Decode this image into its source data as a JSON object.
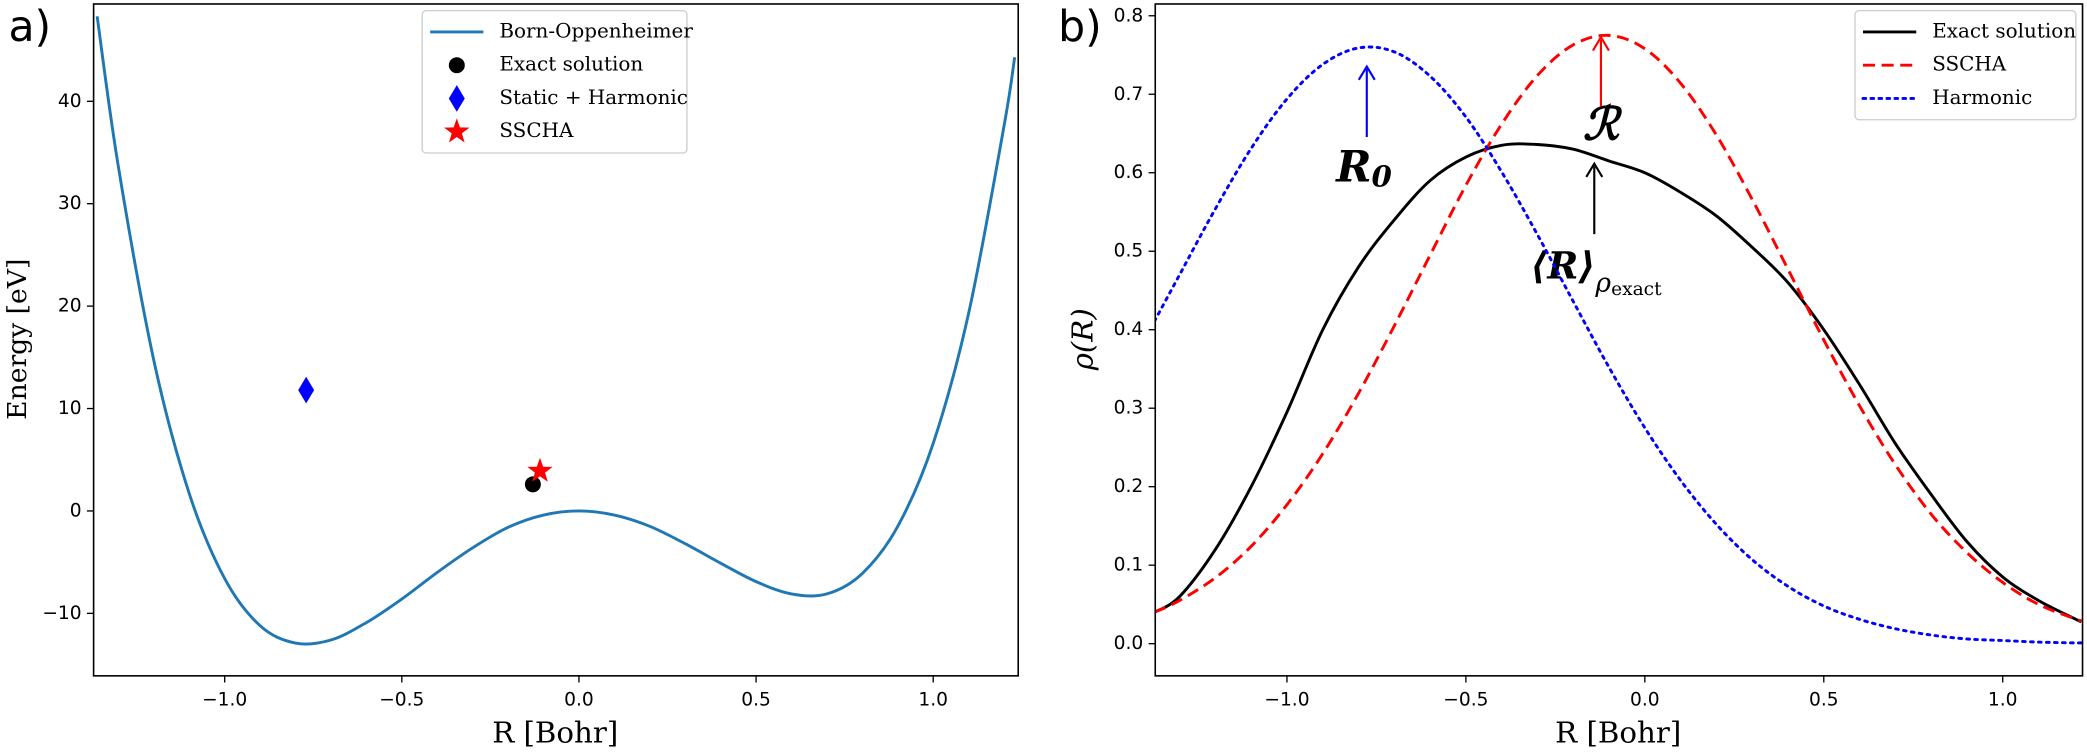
{
  "chart_data": [
    {
      "type": "line",
      "panel_label": "a)",
      "xlabel": "R [Bohr]",
      "ylabel": "Energy [eV]",
      "xlim": [
        -1.37,
        1.24
      ],
      "ylim": [
        -16.1,
        49.5
      ],
      "xticks": [
        {
          "value": -1.0,
          "label": "−1.0"
        },
        {
          "value": -0.5,
          "label": "−0.5"
        },
        {
          "value": 0,
          "label": "0.0"
        },
        0.5,
        {
          "value": 1.0,
          "label": "1.0"
        }
      ],
      "yticks": [
        {
          "value": -10,
          "label": "−10"
        },
        0,
        10,
        20,
        30,
        40
      ],
      "legend": "upper center",
      "series": [
        {
          "name": "Born-Oppenheimer",
          "color": "#1f77b4",
          "style": "solid",
          "x": [
            -1.36,
            -1.3,
            -1.2,
            -1.1,
            -1.0,
            -0.9,
            -0.8,
            -0.7,
            -0.6,
            -0.5,
            -0.4,
            -0.3,
            -0.2,
            -0.1,
            0,
            0.1,
            0.2,
            0.3,
            0.4,
            0.5,
            0.6,
            0.7,
            0.8,
            0.9,
            1.0,
            1.1,
            1.2,
            1.23
          ],
          "values": [
            48.3,
            33.6,
            14.7,
            1.7,
            -6.6,
            -11.2,
            -12.9,
            -12.6,
            -10.9,
            -8.6,
            -6.0,
            -3.6,
            -1.6,
            -0.4,
            0,
            -0.4,
            -1.5,
            -3.2,
            -5.1,
            -6.9,
            -8.1,
            -8.1,
            -6.1,
            -1.5,
            6.6,
            19.3,
            37.6,
            44.3
          ]
        },
        {
          "name": "Exact solution",
          "color": "#000000",
          "marker": "circle",
          "x": [
            -0.13
          ],
          "values": [
            2.6
          ]
        },
        {
          "name": "Static + Harmonic",
          "color": "#0000ff",
          "marker": "diamond",
          "x": [
            -0.77
          ],
          "values": [
            11.8
          ]
        },
        {
          "name": "SSCHA",
          "color": "#ff0000",
          "marker": "star",
          "x": [
            -0.11
          ],
          "values": [
            3.9
          ]
        }
      ]
    },
    {
      "type": "line",
      "panel_label": "b)",
      "xlabel": "R [Bohr]",
      "ylabel": "ρ(R)",
      "xlim": [
        -1.368,
        1.223
      ],
      "ylim": [
        -0.041,
        0.815
      ],
      "xticks": [
        {
          "value": -1.0,
          "label": "−1.0"
        },
        {
          "value": -0.5,
          "label": "−0.5"
        },
        {
          "value": 0,
          "label": "0.0"
        },
        0.5,
        {
          "value": 1.0,
          "label": "1.0"
        }
      ],
      "yticks": [
        {
          "value": 0,
          "label": "0.0"
        },
        0.1,
        0.2,
        0.3,
        0.4,
        0.5,
        0.6,
        0.7,
        0.8
      ],
      "legend": "upper right",
      "x": [
        -1.37,
        -1.3,
        -1.2,
        -1.1,
        -1.0,
        -0.9,
        -0.8,
        -0.7,
        -0.6,
        -0.5,
        -0.4,
        -0.3,
        -0.2,
        -0.1,
        0,
        0.1,
        0.2,
        0.3,
        0.4,
        0.5,
        0.6,
        0.7,
        0.8,
        0.9,
        1.0,
        1.1,
        1.2,
        1.22
      ],
      "series": [
        {
          "name": "Exact solution",
          "color": "#000000",
          "style": "solid",
          "values": [
            0.04,
            0.06,
            0.12,
            0.2,
            0.295,
            0.4,
            0.48,
            0.54,
            0.59,
            0.62,
            0.635,
            0.636,
            0.63,
            0.615,
            0.6,
            0.575,
            0.545,
            0.505,
            0.46,
            0.4,
            0.33,
            0.255,
            0.19,
            0.13,
            0.085,
            0.055,
            0.032,
            0.028
          ]
        },
        {
          "name": "SSCHA",
          "color": "#ff0000",
          "style": "dashed",
          "values": [
            0.04,
            0.055,
            0.084,
            0.124,
            0.177,
            0.242,
            0.319,
            0.405,
            0.495,
            0.584,
            0.662,
            0.724,
            0.763,
            0.775,
            0.758,
            0.714,
            0.648,
            0.566,
            0.477,
            0.387,
            0.303,
            0.228,
            0.165,
            0.116,
            0.078,
            0.05,
            0.032,
            0.029
          ]
        },
        {
          "name": "Harmonic",
          "color": "#0000ff",
          "style": "dotted",
          "values": [
            0.411,
            0.47,
            0.554,
            0.631,
            0.694,
            0.738,
            0.759,
            0.754,
            0.723,
            0.671,
            0.601,
            0.521,
            0.436,
            0.352,
            0.275,
            0.208,
            0.152,
            0.107,
            0.073,
            0.048,
            0.031,
            0.019,
            0.011,
            0.006,
            0.004,
            0.002,
            0.001,
            0.001
          ]
        }
      ],
      "annotations": [
        {
          "text": "R",
          "subscript": "0",
          "color": "#0000ff"
        },
        {
          "text": "ℛ",
          "color": "#ff0000"
        },
        {
          "text": "⟨R⟩",
          "subscript": "ρ",
          "subsubscript": "exact",
          "color": "#000000"
        }
      ]
    }
  ]
}
